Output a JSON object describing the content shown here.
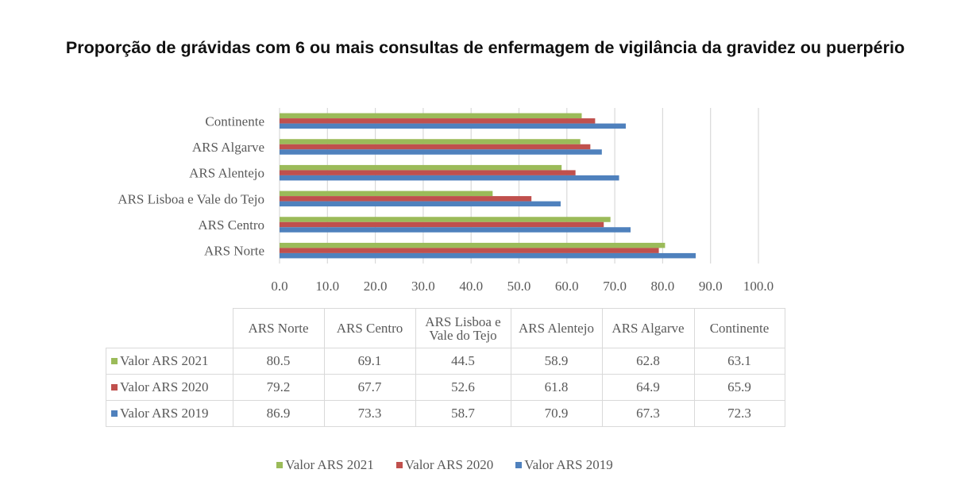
{
  "chart_data": {
    "type": "bar",
    "orientation": "horizontal",
    "title": "Proporção de grávidas com 6 ou mais consultas de enfermagem de vigilância da gravidez ou puerpério",
    "categories": [
      "ARS Norte",
      "ARS Centro",
      "ARS Lisboa e Vale do Tejo",
      "ARS Alentejo",
      "ARS Algarve",
      "Continente"
    ],
    "table_headers": [
      "ARS Norte",
      "ARS Centro",
      "ARS Lisboa e Vale do Tejo",
      "ARS Alentejo",
      "ARS Algarve",
      "Continente"
    ],
    "series": [
      {
        "name": "Valor ARS 2021",
        "color": "#9bbb59",
        "values": [
          80.5,
          69.1,
          44.5,
          58.9,
          62.8,
          63.1
        ],
        "labels": [
          "80.5",
          "69.1",
          "44.5",
          "58.9",
          "62.8",
          "63.1"
        ]
      },
      {
        "name": "Valor ARS 2020",
        "color": "#c0504d",
        "values": [
          79.2,
          67.7,
          52.6,
          61.8,
          64.9,
          65.9
        ],
        "labels": [
          "79.2",
          "67.7",
          "52.6",
          "61.8",
          "64.9",
          "65.9"
        ]
      },
      {
        "name": "Valor ARS 2019",
        "color": "#4f81bd",
        "values": [
          86.9,
          73.3,
          58.7,
          70.9,
          67.3,
          72.3
        ],
        "labels": [
          "86.9",
          "73.3",
          "58.7",
          "70.9",
          "67.3",
          "72.3"
        ]
      }
    ],
    "xlim": [
      0,
      100
    ],
    "xticks": [
      0,
      10,
      20,
      30,
      40,
      50,
      60,
      70,
      80,
      90,
      100
    ],
    "xtick_labels": [
      "0.0",
      "10.0",
      "20.0",
      "30.0",
      "40.0",
      "50.0",
      "60.0",
      "70.0",
      "80.0",
      "90.0",
      "100.0"
    ],
    "xlabel": "",
    "ylabel": "",
    "grid": true,
    "legend_position": "bottom",
    "data_table": true
  }
}
